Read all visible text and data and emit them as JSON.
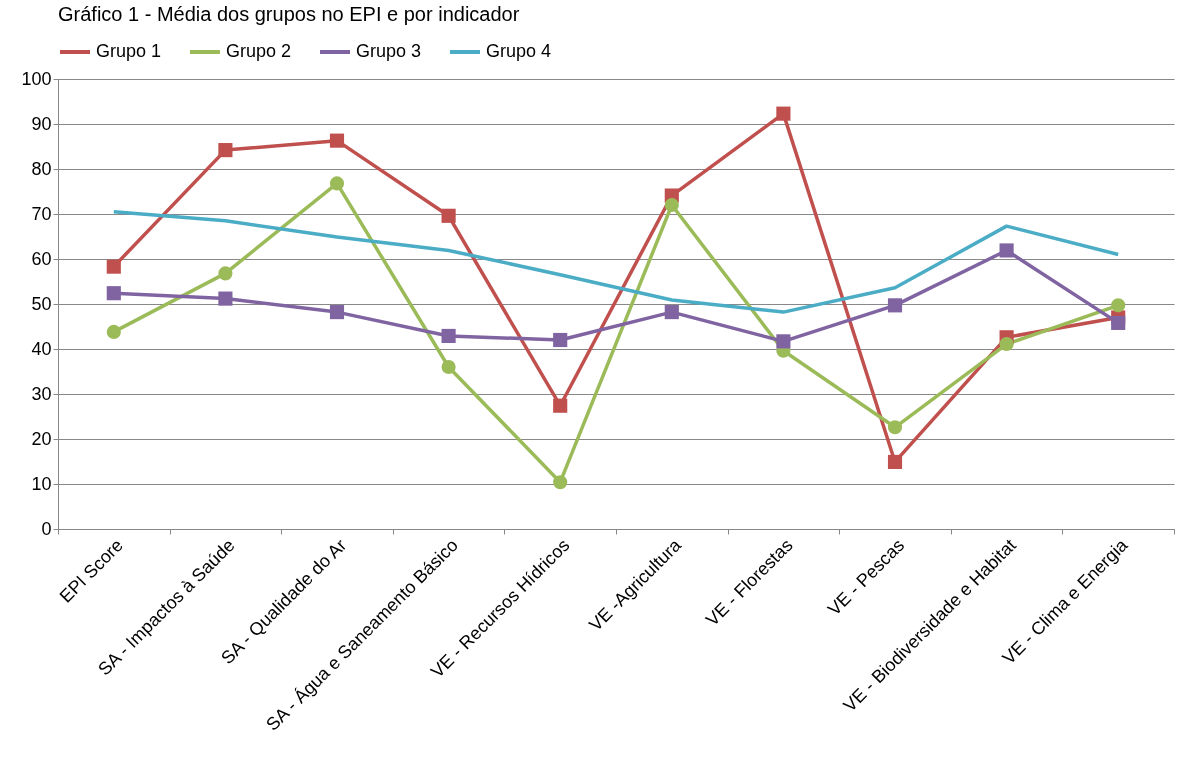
{
  "chart_data": {
    "type": "line",
    "title": "Gráfico 1 - Média dos grupos no EPI e por indicador",
    "categories": [
      "EPI Score",
      "SA - Impactos à Saúde",
      "SA - Qualidade do Ar",
      "SA - Água e Saneamento Básico",
      "VE - Recursos Hídricos",
      "VE -Agricultura",
      "VE - Florestas",
      "VE - Pescas",
      "VE - Biodiversidade e Habitat",
      "VE - Clima e Energia"
    ],
    "series": [
      {
        "name": "Grupo 1",
        "color": "#c0504d",
        "marker": "square",
        "values": [
          58.3,
          84.2,
          86.3,
          69.6,
          27.4,
          74.1,
          92.3,
          14.9,
          42.6,
          47.0
        ]
      },
      {
        "name": "Grupo 2",
        "color": "#9bbb59",
        "marker": "circle",
        "values": [
          43.8,
          56.8,
          76.8,
          36.0,
          10.4,
          72.0,
          39.6,
          22.6,
          41.1,
          49.7
        ]
      },
      {
        "name": "Grupo 3",
        "color": "#8064a2",
        "marker": "square",
        "values": [
          52.4,
          51.2,
          48.2,
          42.9,
          42.0,
          48.2,
          41.7,
          49.7,
          61.9,
          45.8
        ]
      },
      {
        "name": "Grupo 4",
        "color": "#4bacc6",
        "marker": "none",
        "values": [
          70.5,
          68.5,
          64.9,
          61.9,
          56.5,
          50.9,
          48.2,
          53.6,
          67.3,
          61.0
        ]
      }
    ],
    "ylim": [
      0,
      100
    ],
    "yticks": [
      0,
      10,
      20,
      30,
      40,
      50,
      60,
      70,
      80,
      90,
      100
    ],
    "grid": "y",
    "legend": "top"
  }
}
